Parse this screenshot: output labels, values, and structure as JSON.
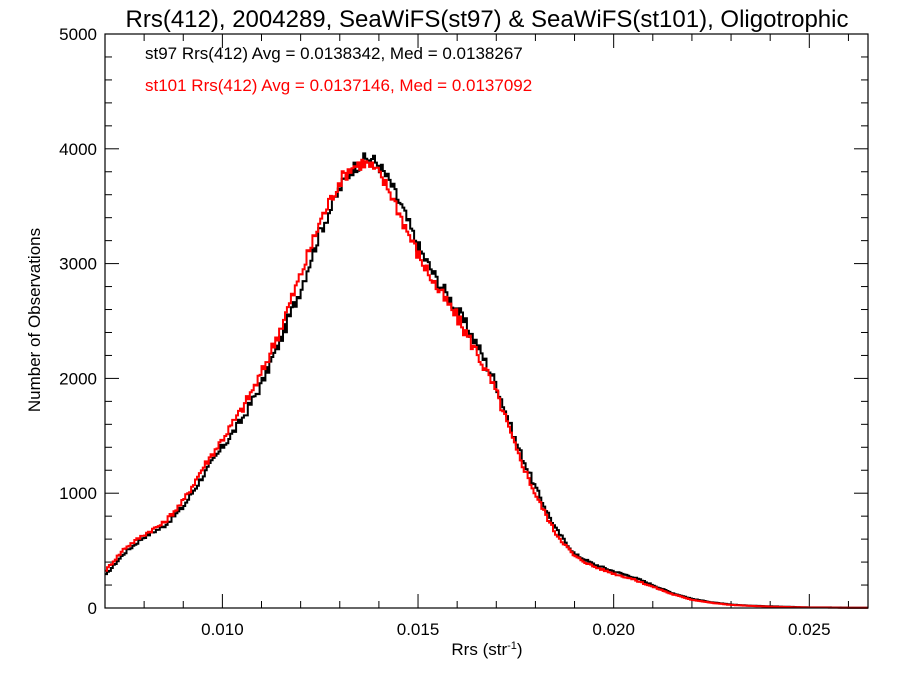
{
  "chart_data": {
    "type": "line",
    "title": "Rrs(412), 2004289, SeaWiFS(st97) & SeaWiFS(st101), Oligotrophic",
    "xlabel_main": "Rrs (str",
    "xlabel_sup": "-1",
    "xlabel_end": ")",
    "ylabel": "Number of Observations",
    "xlim": [
      0.007,
      0.0265
    ],
    "ylim": [
      0,
      5000
    ],
    "xticks": [
      0.01,
      0.015,
      0.02,
      0.025
    ],
    "xtick_labels": [
      "0.010",
      "0.015",
      "0.020",
      "0.025"
    ],
    "yticks": [
      0,
      1000,
      2000,
      3000,
      4000,
      5000
    ],
    "ytick_labels": [
      "0",
      "1000",
      "2000",
      "3000",
      "4000",
      "5000"
    ],
    "grid": false,
    "legend_placement": "top-left",
    "series": [
      {
        "name": "st97",
        "color": "#000000",
        "legend_text": "st97 Rrs(412) Avg = 0.0138342, Med = 0.0138267",
        "x": [
          0.007,
          0.0075,
          0.008,
          0.0085,
          0.009,
          0.0095,
          0.01,
          0.0105,
          0.011,
          0.0115,
          0.012,
          0.0125,
          0.013,
          0.0133,
          0.0136,
          0.0138,
          0.014,
          0.0143,
          0.0146,
          0.015,
          0.0155,
          0.016,
          0.0165,
          0.017,
          0.0175,
          0.018,
          0.0185,
          0.019,
          0.0195,
          0.02,
          0.0205,
          0.021,
          0.0215,
          0.022,
          0.0225,
          0.023,
          0.0235,
          0.024,
          0.0245,
          0.025,
          0.0255,
          0.026,
          0.0265
        ],
        "y": [
          280,
          480,
          620,
          710,
          880,
          1150,
          1400,
          1640,
          1950,
          2350,
          2780,
          3280,
          3650,
          3820,
          3900,
          3920,
          3860,
          3700,
          3480,
          3150,
          2850,
          2600,
          2300,
          1950,
          1450,
          1050,
          700,
          470,
          380,
          320,
          270,
          200,
          130,
          80,
          50,
          30,
          20,
          15,
          10,
          5,
          5,
          3,
          2
        ]
      },
      {
        "name": "st101",
        "color": "#ff0000",
        "legend_text": "st101 Rrs(412) Avg = 0.0137146, Med = 0.0137092",
        "x": [
          0.007,
          0.0075,
          0.008,
          0.0085,
          0.009,
          0.0095,
          0.01,
          0.0105,
          0.011,
          0.0115,
          0.012,
          0.0125,
          0.013,
          0.0133,
          0.0136,
          0.0138,
          0.014,
          0.0143,
          0.0146,
          0.015,
          0.0155,
          0.016,
          0.0165,
          0.017,
          0.0175,
          0.018,
          0.0185,
          0.019,
          0.0195,
          0.02,
          0.0205,
          0.021,
          0.0215,
          0.022,
          0.0225,
          0.023,
          0.0235,
          0.024,
          0.0245,
          0.025,
          0.0255,
          0.026,
          0.0265
        ],
        "y": [
          320,
          520,
          640,
          740,
          930,
          1220,
          1470,
          1730,
          2040,
          2450,
          2900,
          3370,
          3720,
          3840,
          3880,
          3850,
          3780,
          3620,
          3380,
          3080,
          2780,
          2530,
          2230,
          1880,
          1390,
          990,
          660,
          450,
          360,
          300,
          250,
          185,
          120,
          72,
          45,
          27,
          18,
          12,
          8,
          4,
          4,
          2,
          2
        ]
      }
    ]
  }
}
